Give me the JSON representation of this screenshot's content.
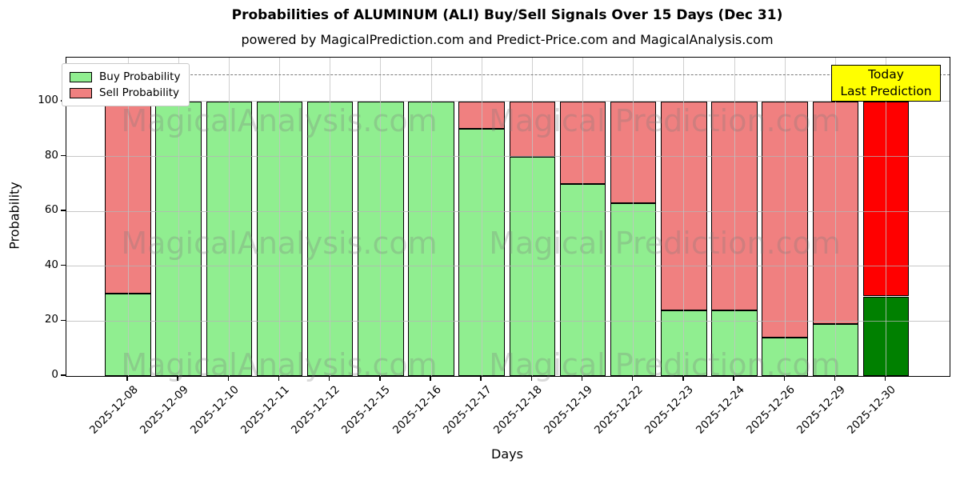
{
  "figure": {
    "title": "Probabilities of ALUMINUM (ALI) Buy/Sell Signals Over 15 Days (Dec 31)",
    "subtitle": "powered by MagicalPrediction.com and Predict-Price.com and MagicalAnalysis.com",
    "xlabel": "Days",
    "ylabel": "Probability"
  },
  "legend": {
    "items": [
      {
        "label": "Buy Probability",
        "color": "#90ee90"
      },
      {
        "label": "Sell Probability",
        "color": "#f08080"
      }
    ]
  },
  "annotation": {
    "line1": "Today",
    "line2": "Last Prediction",
    "bg_color": "#ffff00"
  },
  "watermarks": {
    "left_text": "MagicalAnalysis.com",
    "right_text": "Magical Prediction.com"
  },
  "chart_data": {
    "type": "bar",
    "stacked": true,
    "title": "Probabilities of ALUMINUM (ALI) Buy/Sell Signals Over 15 Days (Dec 31)",
    "xlabel": "Days",
    "ylabel": "Probability",
    "categories": [
      "2025-12-08",
      "2025-12-09",
      "2025-12-10",
      "2025-12-11",
      "2025-12-12",
      "2025-12-15",
      "2025-12-16",
      "2025-12-17",
      "2025-12-18",
      "2025-12-19",
      "2025-12-22",
      "2025-12-23",
      "2025-12-24",
      "2025-12-26",
      "2025-12-29",
      "2025-12-30"
    ],
    "series": [
      {
        "name": "Buy Probability",
        "color": "#90ee90",
        "today_color": "#008000",
        "values": [
          30,
          100,
          100,
          100,
          100,
          100,
          100,
          90,
          80,
          70,
          63,
          24,
          24,
          14,
          19,
          29
        ]
      },
      {
        "name": "Sell Probability",
        "color": "#f08080",
        "today_color": "#ff0000",
        "values": [
          70,
          0,
          0,
          0,
          0,
          0,
          0,
          10,
          20,
          30,
          37,
          76,
          76,
          86,
          81,
          71
        ]
      }
    ],
    "today_index": 15,
    "ylim": [
      0,
      116
    ],
    "yticks": [
      0,
      20,
      40,
      60,
      80,
      100
    ],
    "dashed_line_y": 110,
    "grid": true,
    "legend_position": "upper left"
  }
}
